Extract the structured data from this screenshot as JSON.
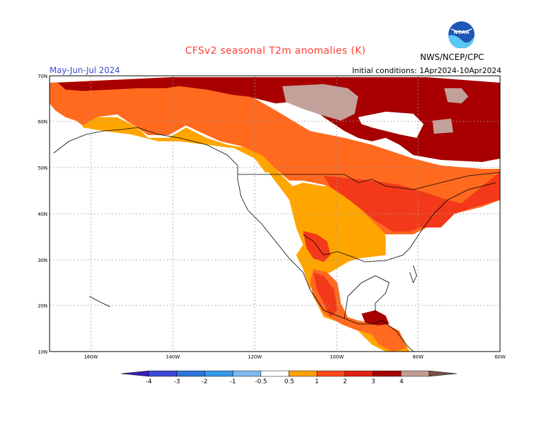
{
  "header": {
    "title": "CFSv2 seasonal T2m anomalies (K)",
    "period": "May-Jun-Jul 2024",
    "initial_conditions": "Initial conditions: 1Apr2024-10Apr2024",
    "agency": "NWS/NCEP/CPC",
    "logo_text": "NOAA"
  },
  "map": {
    "lat_labels": [
      "70N",
      "60N",
      "50N",
      "40N",
      "30N",
      "20N",
      "10N"
    ],
    "lon_labels": [
      "160W",
      "140W",
      "120W",
      "100W",
      "80W",
      "60W"
    ]
  },
  "colorbar": {
    "labels": [
      "-4",
      "-3",
      "-2",
      "-1",
      "-0.5",
      "0.5",
      "1",
      "2",
      "3",
      "4"
    ],
    "colors": [
      "#3a1fb8",
      "#3d49d4",
      "#2f74d8",
      "#3598e8",
      "#7fb9f2",
      "#ffffff",
      "#ff9f00",
      "#ff4a1a",
      "#e0210f",
      "#a30000",
      "#c29c92",
      "#7a5046"
    ]
  },
  "colors": {
    "c05": "#ffa500",
    "c1": "#ff6a1f",
    "c2": "#f3391a",
    "c3": "#a80000",
    "c4": "#c3a19a"
  }
}
